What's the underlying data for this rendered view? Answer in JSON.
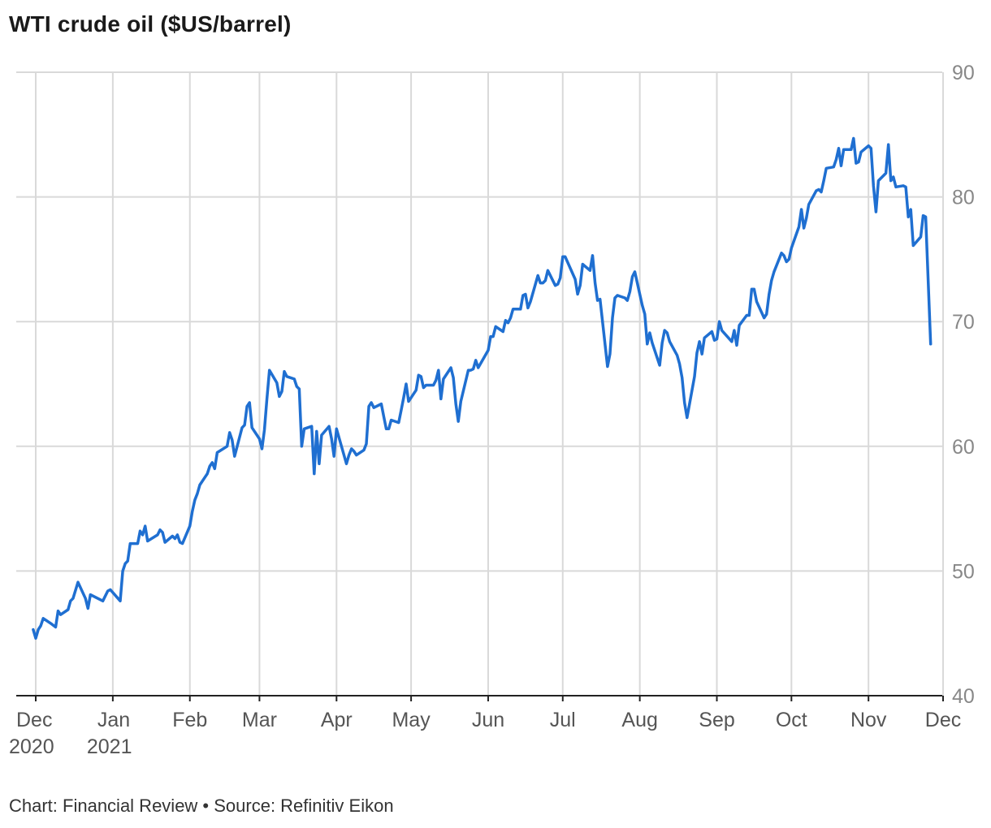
{
  "title": "WTI crude oil ($US/barrel)",
  "source": "Chart: Financial Review • Source: Refinitiv Eikon",
  "colors": {
    "line": "#1f6fd1",
    "grid": "#d9d9d9",
    "axis": "#222222",
    "tick_text": "#888888",
    "x_text": "#555555"
  },
  "chart_data": {
    "type": "line",
    "title": "WTI crude oil ($US/barrel)",
    "xlabel": "",
    "ylabel": "",
    "ylim": [
      40,
      90
    ],
    "y_ticks": [
      40,
      50,
      60,
      70,
      80,
      90
    ],
    "y_axis_position": "right",
    "grid": true,
    "x_ticks": [
      {
        "line1": "Dec",
        "line2": "2020",
        "date": "2020-12-01"
      },
      {
        "line1": "Jan",
        "line2": "2021",
        "date": "2021-01-01"
      },
      {
        "line1": "Feb",
        "line2": "",
        "date": "2021-02-01"
      },
      {
        "line1": "Mar",
        "line2": "",
        "date": "2021-03-01"
      },
      {
        "line1": "Apr",
        "line2": "",
        "date": "2021-04-01"
      },
      {
        "line1": "May",
        "line2": "",
        "date": "2021-05-01"
      },
      {
        "line1": "Jun",
        "line2": "",
        "date": "2021-06-01"
      },
      {
        "line1": "Jul",
        "line2": "",
        "date": "2021-07-01"
      },
      {
        "line1": "Aug",
        "line2": "",
        "date": "2021-08-01"
      },
      {
        "line1": "Sep",
        "line2": "",
        "date": "2021-09-01"
      },
      {
        "line1": "Oct",
        "line2": "",
        "date": "2021-10-01"
      },
      {
        "line1": "Nov",
        "line2": "",
        "date": "2021-11-01"
      },
      {
        "line1": "Dec",
        "line2": "",
        "date": "2021-12-01"
      }
    ],
    "series": [
      {
        "values": [
          [
            "2020-11-30",
            45.3
          ],
          [
            "2020-12-01",
            44.6
          ],
          [
            "2020-12-02",
            45.3
          ],
          [
            "2020-12-03",
            45.6
          ],
          [
            "2020-12-04",
            46.2
          ],
          [
            "2020-12-07",
            45.8
          ],
          [
            "2020-12-09",
            45.5
          ],
          [
            "2020-12-10",
            46.8
          ],
          [
            "2020-12-11",
            46.5
          ],
          [
            "2020-12-14",
            46.9
          ],
          [
            "2020-12-15",
            47.6
          ],
          [
            "2020-12-16",
            47.8
          ],
          [
            "2020-12-18",
            49.1
          ],
          [
            "2020-12-21",
            47.8
          ],
          [
            "2020-12-22",
            47.0
          ],
          [
            "2020-12-23",
            48.1
          ],
          [
            "2020-12-28",
            47.6
          ],
          [
            "2020-12-30",
            48.4
          ],
          [
            "2020-12-31",
            48.5
          ],
          [
            "2021-01-04",
            47.6
          ],
          [
            "2021-01-05",
            50.0
          ],
          [
            "2021-01-06",
            50.6
          ],
          [
            "2021-01-07",
            50.8
          ],
          [
            "2021-01-08",
            52.2
          ],
          [
            "2021-01-11",
            52.2
          ],
          [
            "2021-01-12",
            53.2
          ],
          [
            "2021-01-13",
            52.9
          ],
          [
            "2021-01-14",
            53.6
          ],
          [
            "2021-01-15",
            52.4
          ],
          [
            "2021-01-19",
            52.9
          ],
          [
            "2021-01-20",
            53.3
          ],
          [
            "2021-01-21",
            53.1
          ],
          [
            "2021-01-22",
            52.3
          ],
          [
            "2021-01-25",
            52.8
          ],
          [
            "2021-01-26",
            52.6
          ],
          [
            "2021-01-27",
            52.9
          ],
          [
            "2021-01-28",
            52.3
          ],
          [
            "2021-01-29",
            52.2
          ],
          [
            "2021-02-01",
            53.6
          ],
          [
            "2021-02-02",
            54.8
          ],
          [
            "2021-02-03",
            55.7
          ],
          [
            "2021-02-04",
            56.2
          ],
          [
            "2021-02-05",
            56.9
          ],
          [
            "2021-02-08",
            57.8
          ],
          [
            "2021-02-09",
            58.4
          ],
          [
            "2021-02-10",
            58.7
          ],
          [
            "2021-02-11",
            58.2
          ],
          [
            "2021-02-12",
            59.5
          ],
          [
            "2021-02-16",
            60.0
          ],
          [
            "2021-02-17",
            61.1
          ],
          [
            "2021-02-18",
            60.5
          ],
          [
            "2021-02-19",
            59.2
          ],
          [
            "2021-02-22",
            61.5
          ],
          [
            "2021-02-23",
            61.7
          ],
          [
            "2021-02-24",
            63.2
          ],
          [
            "2021-02-25",
            63.5
          ],
          [
            "2021-02-26",
            61.5
          ],
          [
            "2021-03-01",
            60.6
          ],
          [
            "2021-03-02",
            59.8
          ],
          [
            "2021-03-03",
            61.3
          ],
          [
            "2021-03-04",
            63.8
          ],
          [
            "2021-03-05",
            66.1
          ],
          [
            "2021-03-08",
            65.1
          ],
          [
            "2021-03-09",
            64.0
          ],
          [
            "2021-03-10",
            64.4
          ],
          [
            "2021-03-11",
            66.0
          ],
          [
            "2021-03-12",
            65.6
          ],
          [
            "2021-03-15",
            65.4
          ],
          [
            "2021-03-16",
            64.8
          ],
          [
            "2021-03-17",
            64.6
          ],
          [
            "2021-03-18",
            60.0
          ],
          [
            "2021-03-19",
            61.4
          ],
          [
            "2021-03-22",
            61.6
          ],
          [
            "2021-03-23",
            57.8
          ],
          [
            "2021-03-24",
            61.2
          ],
          [
            "2021-03-25",
            58.6
          ],
          [
            "2021-03-26",
            60.9
          ],
          [
            "2021-03-29",
            61.6
          ],
          [
            "2021-03-30",
            60.6
          ],
          [
            "2021-03-31",
            59.2
          ],
          [
            "2021-04-01",
            61.4
          ],
          [
            "2021-04-05",
            58.6
          ],
          [
            "2021-04-06",
            59.3
          ],
          [
            "2021-04-07",
            59.8
          ],
          [
            "2021-04-08",
            59.6
          ],
          [
            "2021-04-09",
            59.3
          ],
          [
            "2021-04-12",
            59.7
          ],
          [
            "2021-04-13",
            60.2
          ],
          [
            "2021-04-14",
            63.2
          ],
          [
            "2021-04-15",
            63.5
          ],
          [
            "2021-04-16",
            63.1
          ],
          [
            "2021-04-19",
            63.4
          ],
          [
            "2021-04-20",
            62.4
          ],
          [
            "2021-04-21",
            61.4
          ],
          [
            "2021-04-22",
            61.4
          ],
          [
            "2021-04-23",
            62.1
          ],
          [
            "2021-04-26",
            61.9
          ],
          [
            "2021-04-27",
            62.9
          ],
          [
            "2021-04-28",
            63.9
          ],
          [
            "2021-04-29",
            65.0
          ],
          [
            "2021-04-30",
            63.6
          ],
          [
            "2021-05-03",
            64.5
          ],
          [
            "2021-05-04",
            65.7
          ],
          [
            "2021-05-05",
            65.6
          ],
          [
            "2021-05-06",
            64.7
          ],
          [
            "2021-05-07",
            64.9
          ],
          [
            "2021-05-10",
            64.9
          ],
          [
            "2021-05-11",
            65.3
          ],
          [
            "2021-05-12",
            66.1
          ],
          [
            "2021-05-13",
            63.8
          ],
          [
            "2021-05-14",
            65.4
          ],
          [
            "2021-05-17",
            66.3
          ],
          [
            "2021-05-18",
            65.5
          ],
          [
            "2021-05-19",
            63.4
          ],
          [
            "2021-05-20",
            62.0
          ],
          [
            "2021-05-21",
            63.6
          ],
          [
            "2021-05-24",
            66.1
          ],
          [
            "2021-05-25",
            66.1
          ],
          [
            "2021-05-26",
            66.2
          ],
          [
            "2021-05-27",
            66.9
          ],
          [
            "2021-05-28",
            66.3
          ],
          [
            "2021-06-01",
            67.7
          ],
          [
            "2021-06-02",
            68.8
          ],
          [
            "2021-06-03",
            68.8
          ],
          [
            "2021-06-04",
            69.6
          ],
          [
            "2021-06-07",
            69.2
          ],
          [
            "2021-06-08",
            70.1
          ],
          [
            "2021-06-09",
            69.9
          ],
          [
            "2021-06-10",
            70.3
          ],
          [
            "2021-06-11",
            71.0
          ],
          [
            "2021-06-14",
            71.0
          ],
          [
            "2021-06-15",
            72.1
          ],
          [
            "2021-06-16",
            72.2
          ],
          [
            "2021-06-17",
            71.1
          ],
          [
            "2021-06-18",
            71.6
          ],
          [
            "2021-06-21",
            73.7
          ],
          [
            "2021-06-22",
            73.1
          ],
          [
            "2021-06-23",
            73.1
          ],
          [
            "2021-06-24",
            73.3
          ],
          [
            "2021-06-25",
            74.1
          ],
          [
            "2021-06-28",
            72.9
          ],
          [
            "2021-06-29",
            73.0
          ],
          [
            "2021-06-30",
            73.5
          ],
          [
            "2021-07-01",
            75.2
          ],
          [
            "2021-07-02",
            75.2
          ],
          [
            "2021-07-06",
            73.4
          ],
          [
            "2021-07-07",
            72.2
          ],
          [
            "2021-07-08",
            72.9
          ],
          [
            "2021-07-09",
            74.6
          ],
          [
            "2021-07-12",
            74.1
          ],
          [
            "2021-07-13",
            75.3
          ],
          [
            "2021-07-14",
            73.1
          ],
          [
            "2021-07-15",
            71.7
          ],
          [
            "2021-07-16",
            71.8
          ],
          [
            "2021-07-19",
            66.4
          ],
          [
            "2021-07-20",
            67.4
          ],
          [
            "2021-07-21",
            70.3
          ],
          [
            "2021-07-22",
            71.9
          ],
          [
            "2021-07-23",
            72.1
          ],
          [
            "2021-07-26",
            71.9
          ],
          [
            "2021-07-27",
            71.7
          ],
          [
            "2021-07-28",
            72.4
          ],
          [
            "2021-07-29",
            73.6
          ],
          [
            "2021-07-30",
            74.0
          ],
          [
            "2021-08-02",
            71.3
          ],
          [
            "2021-08-03",
            70.6
          ],
          [
            "2021-08-04",
            68.2
          ],
          [
            "2021-08-05",
            69.1
          ],
          [
            "2021-08-06",
            68.3
          ],
          [
            "2021-08-09",
            66.5
          ],
          [
            "2021-08-10",
            68.3
          ],
          [
            "2021-08-11",
            69.3
          ],
          [
            "2021-08-12",
            69.1
          ],
          [
            "2021-08-13",
            68.4
          ],
          [
            "2021-08-16",
            67.3
          ],
          [
            "2021-08-17",
            66.6
          ],
          [
            "2021-08-18",
            65.5
          ],
          [
            "2021-08-19",
            63.5
          ],
          [
            "2021-08-20",
            62.3
          ],
          [
            "2021-08-23",
            65.6
          ],
          [
            "2021-08-24",
            67.5
          ],
          [
            "2021-08-25",
            68.4
          ],
          [
            "2021-08-26",
            67.4
          ],
          [
            "2021-08-27",
            68.7
          ],
          [
            "2021-08-30",
            69.2
          ],
          [
            "2021-08-31",
            68.5
          ],
          [
            "2021-09-01",
            68.6
          ],
          [
            "2021-09-02",
            70.0
          ],
          [
            "2021-09-03",
            69.3
          ],
          [
            "2021-09-07",
            68.4
          ],
          [
            "2021-09-08",
            69.3
          ],
          [
            "2021-09-09",
            68.1
          ],
          [
            "2021-09-10",
            69.7
          ],
          [
            "2021-09-13",
            70.5
          ],
          [
            "2021-09-14",
            70.5
          ],
          [
            "2021-09-15",
            72.6
          ],
          [
            "2021-09-16",
            72.6
          ],
          [
            "2021-09-17",
            71.6
          ],
          [
            "2021-09-20",
            70.3
          ],
          [
            "2021-09-21",
            70.6
          ],
          [
            "2021-09-22",
            72.2
          ],
          [
            "2021-09-23",
            73.3
          ],
          [
            "2021-09-24",
            74.0
          ],
          [
            "2021-09-27",
            75.5
          ],
          [
            "2021-09-28",
            75.3
          ],
          [
            "2021-09-29",
            74.8
          ],
          [
            "2021-09-30",
            75.0
          ],
          [
            "2021-10-01",
            75.9
          ],
          [
            "2021-10-04",
            77.6
          ],
          [
            "2021-10-05",
            79.0
          ],
          [
            "2021-10-06",
            77.5
          ],
          [
            "2021-10-07",
            78.3
          ],
          [
            "2021-10-08",
            79.4
          ],
          [
            "2021-10-11",
            80.5
          ],
          [
            "2021-10-12",
            80.6
          ],
          [
            "2021-10-13",
            80.4
          ],
          [
            "2021-10-14",
            81.3
          ],
          [
            "2021-10-15",
            82.3
          ],
          [
            "2021-10-18",
            82.4
          ],
          [
            "2021-10-19",
            83.0
          ],
          [
            "2021-10-20",
            83.9
          ],
          [
            "2021-10-21",
            82.5
          ],
          [
            "2021-10-22",
            83.8
          ],
          [
            "2021-10-25",
            83.8
          ],
          [
            "2021-10-26",
            84.7
          ],
          [
            "2021-10-27",
            82.7
          ],
          [
            "2021-10-28",
            82.8
          ],
          [
            "2021-10-29",
            83.6
          ],
          [
            "2021-11-01",
            84.1
          ],
          [
            "2021-11-02",
            83.9
          ],
          [
            "2021-11-03",
            80.9
          ],
          [
            "2021-11-04",
            78.8
          ],
          [
            "2021-11-05",
            81.3
          ],
          [
            "2021-11-08",
            81.9
          ],
          [
            "2021-11-09",
            84.2
          ],
          [
            "2021-11-10",
            81.3
          ],
          [
            "2021-11-11",
            81.6
          ],
          [
            "2021-11-12",
            80.8
          ],
          [
            "2021-11-15",
            80.9
          ],
          [
            "2021-11-16",
            80.8
          ],
          [
            "2021-11-17",
            78.4
          ],
          [
            "2021-11-18",
            79.0
          ],
          [
            "2021-11-19",
            76.1
          ],
          [
            "2021-11-22",
            76.8
          ],
          [
            "2021-11-23",
            78.5
          ],
          [
            "2021-11-24",
            78.4
          ],
          [
            "2021-11-26",
            68.2
          ]
        ]
      }
    ]
  }
}
